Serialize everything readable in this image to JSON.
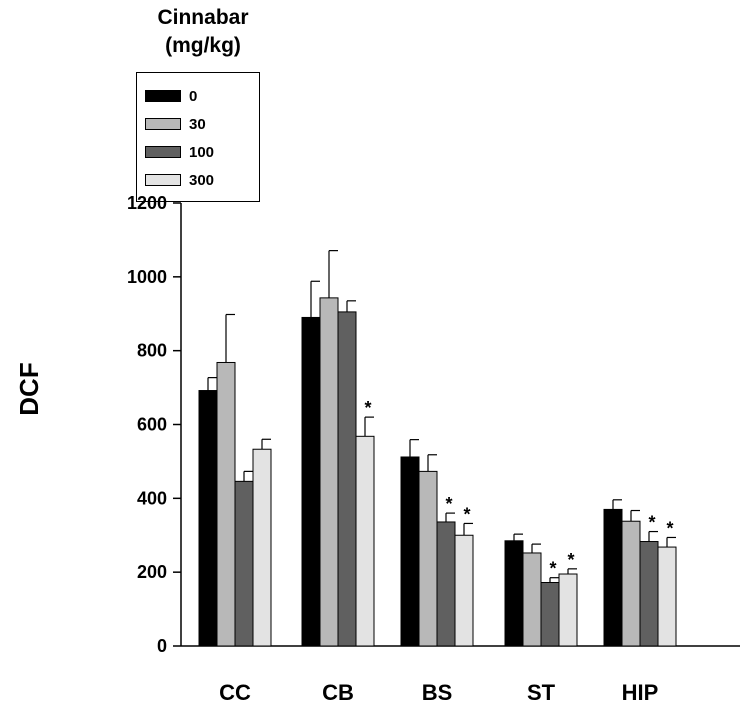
{
  "chart_data": {
    "type": "bar",
    "title": "",
    "xlabel": "",
    "ylabel": "DCF",
    "ylim": [
      0,
      1200
    ],
    "yticks": [
      0,
      200,
      400,
      600,
      800,
      1000,
      1200
    ],
    "grid": false,
    "legend_title_lines": [
      "Cinnabar",
      "(mg/kg)"
    ],
    "legend_placement": "top-left",
    "categories": [
      "CC",
      "CB",
      "BS",
      "ST",
      "HIP"
    ],
    "series": [
      {
        "name": "0",
        "color": "#000000",
        "values": [
          692,
          890,
          512,
          285,
          370
        ],
        "errors": [
          35,
          98,
          47,
          18,
          26
        ],
        "significant": [
          false,
          false,
          false,
          false,
          false
        ]
      },
      {
        "name": "30",
        "color": "#b8b8b8",
        "values": [
          768,
          943,
          473,
          252,
          338
        ],
        "errors": [
          130,
          128,
          45,
          24,
          29
        ],
        "significant": [
          false,
          false,
          false,
          false,
          false
        ]
      },
      {
        "name": "100",
        "color": "#606060",
        "values": [
          446,
          905,
          336,
          172,
          283
        ],
        "errors": [
          27,
          30,
          24,
          13,
          27
        ],
        "significant": [
          false,
          false,
          true,
          true,
          true
        ]
      },
      {
        "name": "300",
        "color": "#e3e3e3",
        "values": [
          533,
          568,
          300,
          195,
          268
        ],
        "errors": [
          27,
          52,
          32,
          14,
          26
        ],
        "significant": [
          false,
          true,
          true,
          true,
          true
        ]
      }
    ],
    "significance_marker": "*"
  }
}
